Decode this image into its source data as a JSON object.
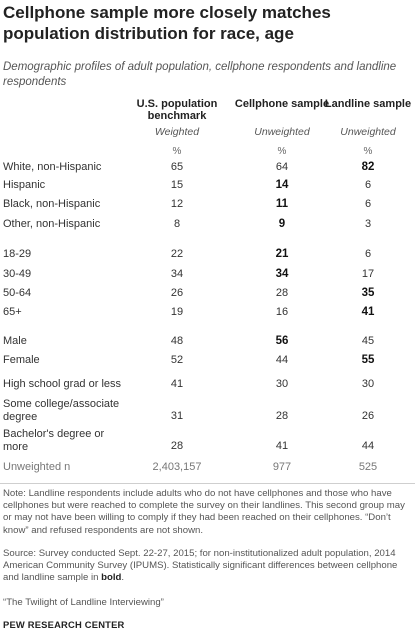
{
  "title": "Cellphone sample more closely matches population distribution for race, age",
  "subtitle": "Demographic profiles of adult population, cellphone respondents and landline respondents",
  "columns": [
    {
      "label": "U.S. population benchmark",
      "sub": "Weighted",
      "pct": "%"
    },
    {
      "label": "Cellphone sample",
      "sub": "Unweighted",
      "pct": "%"
    },
    {
      "label": "Landline sample",
      "sub": "Unweighted",
      "pct": "%"
    }
  ],
  "rows": [
    {
      "label": "White, non-Hispanic",
      "v": [
        "65",
        "64",
        "82"
      ],
      "bold": [
        false,
        false,
        true
      ]
    },
    {
      "label": "Hispanic",
      "v": [
        "15",
        "14",
        "6"
      ],
      "bold": [
        false,
        true,
        false
      ]
    },
    {
      "label": "Black, non-Hispanic",
      "v": [
        "12",
        "11",
        "6"
      ],
      "bold": [
        false,
        true,
        false
      ]
    },
    {
      "label": "Other, non-Hispanic",
      "v": [
        "8",
        "9",
        "3"
      ],
      "bold": [
        false,
        true,
        false
      ]
    },
    {
      "label": "18-29",
      "v": [
        "22",
        "21",
        "6"
      ],
      "bold": [
        false,
        true,
        false
      ]
    },
    {
      "label": "30-49",
      "v": [
        "34",
        "34",
        "17"
      ],
      "bold": [
        false,
        true,
        false
      ]
    },
    {
      "label": "50-64",
      "v": [
        "26",
        "28",
        "35"
      ],
      "bold": [
        false,
        false,
        true
      ]
    },
    {
      "label": "65+",
      "v": [
        "19",
        "16",
        "41"
      ],
      "bold": [
        false,
        false,
        true
      ]
    },
    {
      "label": "Male",
      "v": [
        "48",
        "56",
        "45"
      ],
      "bold": [
        false,
        true,
        false
      ]
    },
    {
      "label": "Female",
      "v": [
        "52",
        "44",
        "55"
      ],
      "bold": [
        false,
        false,
        true
      ]
    },
    {
      "label": "High school grad or less",
      "v": [
        "41",
        "30",
        "30"
      ],
      "bold": [
        false,
        false,
        false
      ]
    },
    {
      "label": "Some college/associate degree",
      "v": [
        "31",
        "28",
        "26"
      ],
      "bold": [
        false,
        false,
        false
      ]
    },
    {
      "label": "Bachelor's degree or more",
      "v": [
        "28",
        "41",
        "44"
      ],
      "bold": [
        false,
        false,
        false
      ]
    }
  ],
  "unweighted_n": {
    "label": "Unweighted n",
    "v": [
      "2,403,157",
      "977",
      "525"
    ]
  },
  "note": "Note: Landline respondents include adults who do not have cellphones and those who have cellphones but were reached to complete the survey on their landlines. This second group may or may not have been willing to comply if they had been reached on their cellphones. “Don’t know” and refused respondents are not shown.",
  "source_pre": "Source: Survey conducted Sept. 22-27, 2015; for non-institutionalized adult population, 2014 American Community Survey (IPUMS). Statistically significant differences between cellphone and landline sample in ",
  "source_bold": "bold",
  "source_post": ".",
  "report": "“The Twilight of Landline Interviewing”",
  "footer": "PEW RESEARCH CENTER"
}
